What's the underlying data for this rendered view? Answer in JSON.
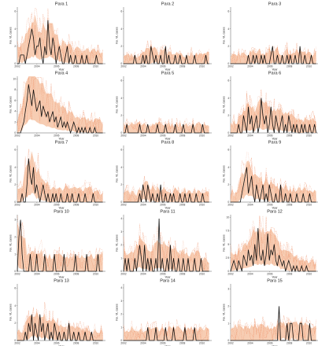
{
  "figure": {
    "xlabel": "Year",
    "ylabel": "No. VL cases"
  },
  "chart_data": [
    {
      "type": "line",
      "title": "Para 1",
      "xlabel": "Year",
      "ylabel": "No. VL cases",
      "x_ticks": [
        "2002",
        "2004",
        "2006",
        "2008",
        "2010"
      ],
      "y_ticks": [
        0,
        2,
        4,
        6
      ],
      "ylim": [
        0,
        6.5
      ],
      "xlim": [
        2002,
        2011
      ],
      "series": [
        {
          "values": [
            0,
            0,
            1,
            1,
            1,
            0,
            1,
            2,
            3,
            4,
            3,
            1,
            2,
            2,
            3,
            1,
            0,
            2,
            1,
            5,
            2,
            1,
            3,
            2,
            0,
            1,
            2,
            1,
            0,
            0,
            1,
            2,
            0,
            1,
            0,
            0,
            1,
            0,
            0,
            0,
            1,
            0,
            0,
            1,
            0,
            0,
            0,
            0,
            0,
            1,
            0,
            0,
            0,
            0
          ]
        }
      ]
    },
    {
      "type": "line",
      "title": "Para 2",
      "xlabel": "Year",
      "ylabel": "No. VL cases",
      "x_ticks": [
        "2002",
        "2004",
        "2006",
        "2008",
        "2010"
      ],
      "y_ticks": [
        0,
        2,
        4,
        6
      ],
      "ylim": [
        0,
        6.5
      ],
      "xlim": [
        2002,
        2011
      ],
      "series": [
        {
          "values": [
            0,
            0,
            0,
            0,
            0,
            0,
            0,
            1,
            0,
            0,
            0,
            0,
            1,
            0,
            1,
            0,
            0,
            2,
            1,
            0,
            1,
            0,
            0,
            1,
            0,
            0,
            2,
            0,
            1,
            0,
            0,
            0,
            1,
            0,
            0,
            1,
            0,
            0,
            0,
            1,
            0,
            0,
            0,
            0,
            1,
            0,
            0,
            0,
            0,
            0,
            0,
            1,
            0,
            0
          ]
        }
      ]
    },
    {
      "type": "line",
      "title": "Para 3",
      "xlabel": "Year",
      "ylabel": "No. VL cases",
      "x_ticks": [
        "2002",
        "2004",
        "2006",
        "2008",
        "2010"
      ],
      "y_ticks": [
        0,
        2,
        4,
        6
      ],
      "ylim": [
        0,
        6.5
      ],
      "xlim": [
        2002,
        2011
      ],
      "series": [
        {
          "values": [
            0,
            0,
            0,
            0,
            0,
            0,
            0,
            0,
            0,
            0,
            0,
            1,
            0,
            0,
            1,
            0,
            1,
            0,
            0,
            1,
            0,
            1,
            0,
            0,
            0,
            1,
            2,
            0,
            0,
            1,
            0,
            0,
            1,
            0,
            0,
            1,
            0,
            1,
            0,
            0,
            1,
            0,
            0,
            2,
            0,
            0,
            1,
            0,
            0,
            0,
            1,
            0,
            0,
            0
          ]
        }
      ]
    },
    {
      "type": "line",
      "title": "Para 4",
      "xlabel": "Year",
      "ylabel": "No. VL cases",
      "x_ticks": [
        "2002",
        "2004",
        "2006",
        "2008",
        "2010"
      ],
      "y_ticks": [
        0,
        2,
        4,
        6,
        8,
        10
      ],
      "ylim": [
        0,
        10.5
      ],
      "xlim": [
        2002,
        2011
      ],
      "series": [
        {
          "values": [
            0,
            0,
            0,
            1,
            2,
            4,
            6,
            9,
            7,
            5,
            8,
            6,
            4,
            5,
            6,
            3,
            5,
            4,
            3,
            4,
            2,
            3,
            4,
            2,
            3,
            1,
            2,
            3,
            1,
            2,
            1,
            2,
            1,
            0,
            1,
            2,
            1,
            0,
            1,
            0,
            1,
            0,
            1,
            0,
            0,
            1,
            0,
            0,
            1,
            0,
            0,
            0,
            0,
            0
          ]
        }
      ]
    },
    {
      "type": "line",
      "title": "Para 5",
      "xlabel": "Year",
      "ylabel": "No. VL cases",
      "x_ticks": [
        "2002",
        "2004",
        "2006",
        "2008",
        "2010"
      ],
      "y_ticks": [
        0,
        2,
        4,
        6
      ],
      "ylim": [
        0,
        6.5
      ],
      "xlim": [
        2002,
        2011
      ],
      "series": [
        {
          "values": [
            0,
            0,
            1,
            0,
            0,
            0,
            0,
            0,
            0,
            0,
            1,
            0,
            0,
            0,
            0,
            1,
            0,
            0,
            0,
            0,
            0,
            1,
            0,
            0,
            0,
            0,
            1,
            0,
            0,
            0,
            0,
            0,
            1,
            0,
            0,
            0,
            0,
            1,
            0,
            0,
            0,
            0,
            0,
            1,
            0,
            0,
            0,
            0,
            0,
            1,
            0,
            0,
            0,
            0
          ]
        }
      ]
    },
    {
      "type": "line",
      "title": "Para 6",
      "xlabel": "Year",
      "ylabel": "No. VL cases",
      "x_ticks": [
        "2002",
        "2004",
        "2006",
        "2008",
        "2010"
      ],
      "y_ticks": [
        0,
        2,
        4,
        6
      ],
      "ylim": [
        0,
        6.5
      ],
      "xlim": [
        2002,
        2011
      ],
      "series": [
        {
          "values": [
            0,
            0,
            0,
            0,
            0,
            1,
            0,
            0,
            2,
            1,
            0,
            3,
            1,
            2,
            0,
            1,
            2,
            0,
            1,
            4,
            2,
            1,
            2,
            0,
            1,
            3,
            1,
            0,
            2,
            1,
            0,
            1,
            2,
            0,
            1,
            0,
            2,
            1,
            0,
            1,
            0,
            1,
            0,
            0,
            1,
            0,
            1,
            0,
            0,
            1,
            0,
            0,
            1,
            0
          ]
        }
      ]
    },
    {
      "type": "line",
      "title": "Para 7",
      "xlabel": "Year",
      "ylabel": "No. VL cases",
      "x_ticks": [
        "2002",
        "2004",
        "2006",
        "2008",
        "2010"
      ],
      "y_ticks": [
        0,
        2,
        4,
        6
      ],
      "ylim": [
        0,
        6.5
      ],
      "xlim": [
        2002,
        2011
      ],
      "series": [
        {
          "values": [
            0,
            0,
            0,
            1,
            0,
            0,
            2,
            5,
            3,
            2,
            4,
            1,
            2,
            1,
            0,
            1,
            2,
            1,
            0,
            1,
            0,
            0,
            1,
            0,
            1,
            0,
            0,
            1,
            0,
            0,
            0,
            1,
            0,
            0,
            1,
            0,
            0,
            0,
            1,
            0,
            0,
            0,
            1,
            0,
            0,
            0,
            0,
            1,
            0,
            0,
            0,
            0,
            0,
            0
          ]
        }
      ]
    },
    {
      "type": "line",
      "title": "Para 8",
      "xlabel": "Year",
      "ylabel": "No. VL cases",
      "x_ticks": [
        "2002",
        "2004",
        "2006",
        "2008",
        "2010"
      ],
      "y_ticks": [
        0,
        2,
        4,
        6
      ],
      "ylim": [
        0,
        6.5
      ],
      "xlim": [
        2002,
        2011
      ],
      "series": [
        {
          "values": [
            0,
            0,
            0,
            0,
            0,
            0,
            0,
            0,
            0,
            0,
            1,
            0,
            2,
            1,
            0,
            2,
            1,
            0,
            1,
            0,
            0,
            1,
            0,
            2,
            0,
            0,
            1,
            0,
            0,
            1,
            0,
            1,
            0,
            0,
            0,
            1,
            0,
            0,
            1,
            0,
            0,
            1,
            0,
            0,
            0,
            1,
            0,
            0,
            0,
            1,
            0,
            0,
            0,
            0
          ]
        }
      ]
    },
    {
      "type": "line",
      "title": "Para 9",
      "xlabel": "Year",
      "ylabel": "No. VL cases",
      "x_ticks": [
        "2002",
        "2004",
        "2006",
        "2008",
        "2010"
      ],
      "y_ticks": [
        0,
        2,
        4,
        6
      ],
      "ylim": [
        0,
        6.5
      ],
      "xlim": [
        2002,
        2011
      ],
      "series": [
        {
          "values": [
            0,
            0,
            0,
            0,
            0,
            0,
            0,
            1,
            2,
            3,
            4,
            1,
            2,
            3,
            1,
            0,
            2,
            1,
            0,
            1,
            2,
            0,
            1,
            0,
            2,
            1,
            0,
            0,
            1,
            0,
            0,
            2,
            0,
            0,
            1,
            0,
            0,
            1,
            0,
            0,
            0,
            1,
            0,
            0,
            0,
            1,
            0,
            0,
            0,
            1,
            0,
            0,
            0,
            0
          ]
        }
      ]
    },
    {
      "type": "line",
      "title": "Para 10",
      "xlabel": "Year",
      "ylabel": "No. VL cases",
      "x_ticks": [
        "2002",
        "2004",
        "2006",
        "2008",
        "2010"
      ],
      "y_ticks": [
        0,
        1,
        2,
        3
      ],
      "ylim": [
        0,
        3.3
      ],
      "xlim": [
        2002,
        2011
      ],
      "series": [
        {
          "values": [
            0,
            2,
            3,
            1,
            0,
            0,
            0,
            0,
            1,
            0,
            0,
            0,
            1,
            0,
            0,
            0,
            0,
            1,
            0,
            0,
            0,
            0,
            0,
            1,
            0,
            0,
            0,
            0,
            0,
            1,
            0,
            0,
            0,
            0,
            0,
            0,
            1,
            0,
            0,
            0,
            0,
            0,
            0,
            1,
            0,
            0,
            0,
            0,
            0,
            0,
            1,
            0,
            0,
            0
          ]
        }
      ]
    },
    {
      "type": "line",
      "title": "Para 11",
      "xlabel": "Year",
      "ylabel": "No. VL cases",
      "x_ticks": [
        "2002",
        "2004",
        "2006",
        "2008",
        "2010"
      ],
      "y_ticks": [
        0,
        1,
        2,
        3,
        4
      ],
      "ylim": [
        0,
        4.3
      ],
      "xlim": [
        2002,
        2011
      ],
      "series": [
        {
          "values": [
            0,
            1,
            0,
            1,
            0,
            0,
            0,
            1,
            0,
            1,
            2,
            1,
            0,
            2,
            0,
            1,
            0,
            1,
            0,
            0,
            1,
            0,
            4,
            0,
            1,
            0,
            0,
            1,
            0,
            2,
            0,
            1,
            0,
            0,
            1,
            0,
            0,
            1,
            0,
            0,
            1,
            0,
            0,
            0,
            1,
            0,
            0,
            0,
            1,
            0,
            0,
            0,
            0,
            0
          ]
        }
      ]
    },
    {
      "type": "line",
      "title": "Para 12",
      "xlabel": "Year",
      "ylabel": "No. VL cases",
      "x_ticks": [
        "2002",
        "2004",
        "2006",
        "2008",
        "2010"
      ],
      "y_ticks": [
        0,
        2.5,
        5,
        7.5,
        10
      ],
      "ylim": [
        0,
        10.5
      ],
      "xlim": [
        2002,
        2011
      ],
      "series": [
        {
          "values": [
            0,
            1,
            2,
            1,
            0,
            2,
            1,
            0,
            3,
            2,
            1,
            4,
            2,
            3,
            1,
            5,
            2,
            8,
            3,
            2,
            4,
            1,
            3,
            7,
            2,
            4,
            3,
            5,
            2,
            1,
            3,
            2,
            1,
            2,
            0,
            1,
            2,
            1,
            0,
            1,
            0,
            1,
            0,
            0,
            1,
            0,
            0,
            1,
            0,
            0,
            0,
            0,
            0,
            0
          ]
        }
      ]
    },
    {
      "type": "line",
      "title": "Para 13",
      "xlabel": "Year",
      "ylabel": "No. VL cases",
      "x_ticks": [
        "2002",
        "2004",
        "2006",
        "2008",
        "2010"
      ],
      "y_ticks": [
        0,
        2,
        4,
        6
      ],
      "ylim": [
        0,
        6.5
      ],
      "xlim": [
        2002,
        2011
      ],
      "series": [
        {
          "values": [
            0,
            0,
            0,
            0,
            0,
            1,
            0,
            2,
            1,
            3,
            0,
            2,
            1,
            0,
            3,
            1,
            2,
            0,
            1,
            2,
            0,
            1,
            0,
            2,
            1,
            0,
            1,
            0,
            0,
            1,
            0,
            0,
            2,
            0,
            0,
            1,
            0,
            0,
            1,
            0,
            0,
            0,
            1,
            0,
            0,
            0,
            1,
            0,
            0,
            0,
            0,
            0,
            0,
            0
          ]
        }
      ]
    },
    {
      "type": "line",
      "title": "Para 14",
      "xlabel": "Year",
      "ylabel": "No. VL cases",
      "x_ticks": [
        "2002",
        "2004",
        "2006",
        "2008",
        "2010"
      ],
      "y_ticks": [
        0,
        1,
        2,
        3,
        4
      ],
      "ylim": [
        0,
        4.3
      ],
      "xlim": [
        2002,
        2011
      ],
      "series": [
        {
          "values": [
            0,
            0,
            0,
            0,
            0,
            0,
            0,
            0,
            0,
            0,
            0,
            0,
            0,
            0,
            0,
            1,
            0,
            0,
            0,
            0,
            1,
            0,
            0,
            0,
            0,
            0,
            1,
            0,
            0,
            0,
            0,
            1,
            0,
            0,
            0,
            0,
            0,
            0,
            1,
            0,
            0,
            0,
            0,
            0,
            1,
            0,
            0,
            0,
            0,
            0,
            0,
            0,
            0,
            0
          ]
        }
      ]
    },
    {
      "type": "line",
      "title": "Para 15",
      "xlabel": "Year",
      "ylabel": "No. VL cases",
      "x_ticks": [
        "2002",
        "2004",
        "2006",
        "2008",
        "2010"
      ],
      "y_ticks": [
        0,
        1,
        2,
        3
      ],
      "ylim": [
        0,
        3.3
      ],
      "xlim": [
        2002,
        2011
      ],
      "series": [
        {
          "values": [
            0,
            0,
            0,
            0,
            0,
            0,
            0,
            0,
            0,
            0,
            0,
            0,
            0,
            0,
            0,
            0,
            0,
            0,
            0,
            0,
            0,
            0,
            0,
            0,
            0,
            0,
            0,
            0,
            0,
            0,
            2,
            0,
            0,
            0,
            0,
            1,
            0,
            1,
            1,
            0,
            0,
            0,
            0,
            1,
            1,
            0,
            0,
            0,
            0,
            1,
            0,
            0,
            0,
            0
          ]
        }
      ]
    }
  ],
  "style": {
    "observed_color": "#111111",
    "model_band_color": "#f6c4a6",
    "model_median_color": "#ee8a60"
  }
}
